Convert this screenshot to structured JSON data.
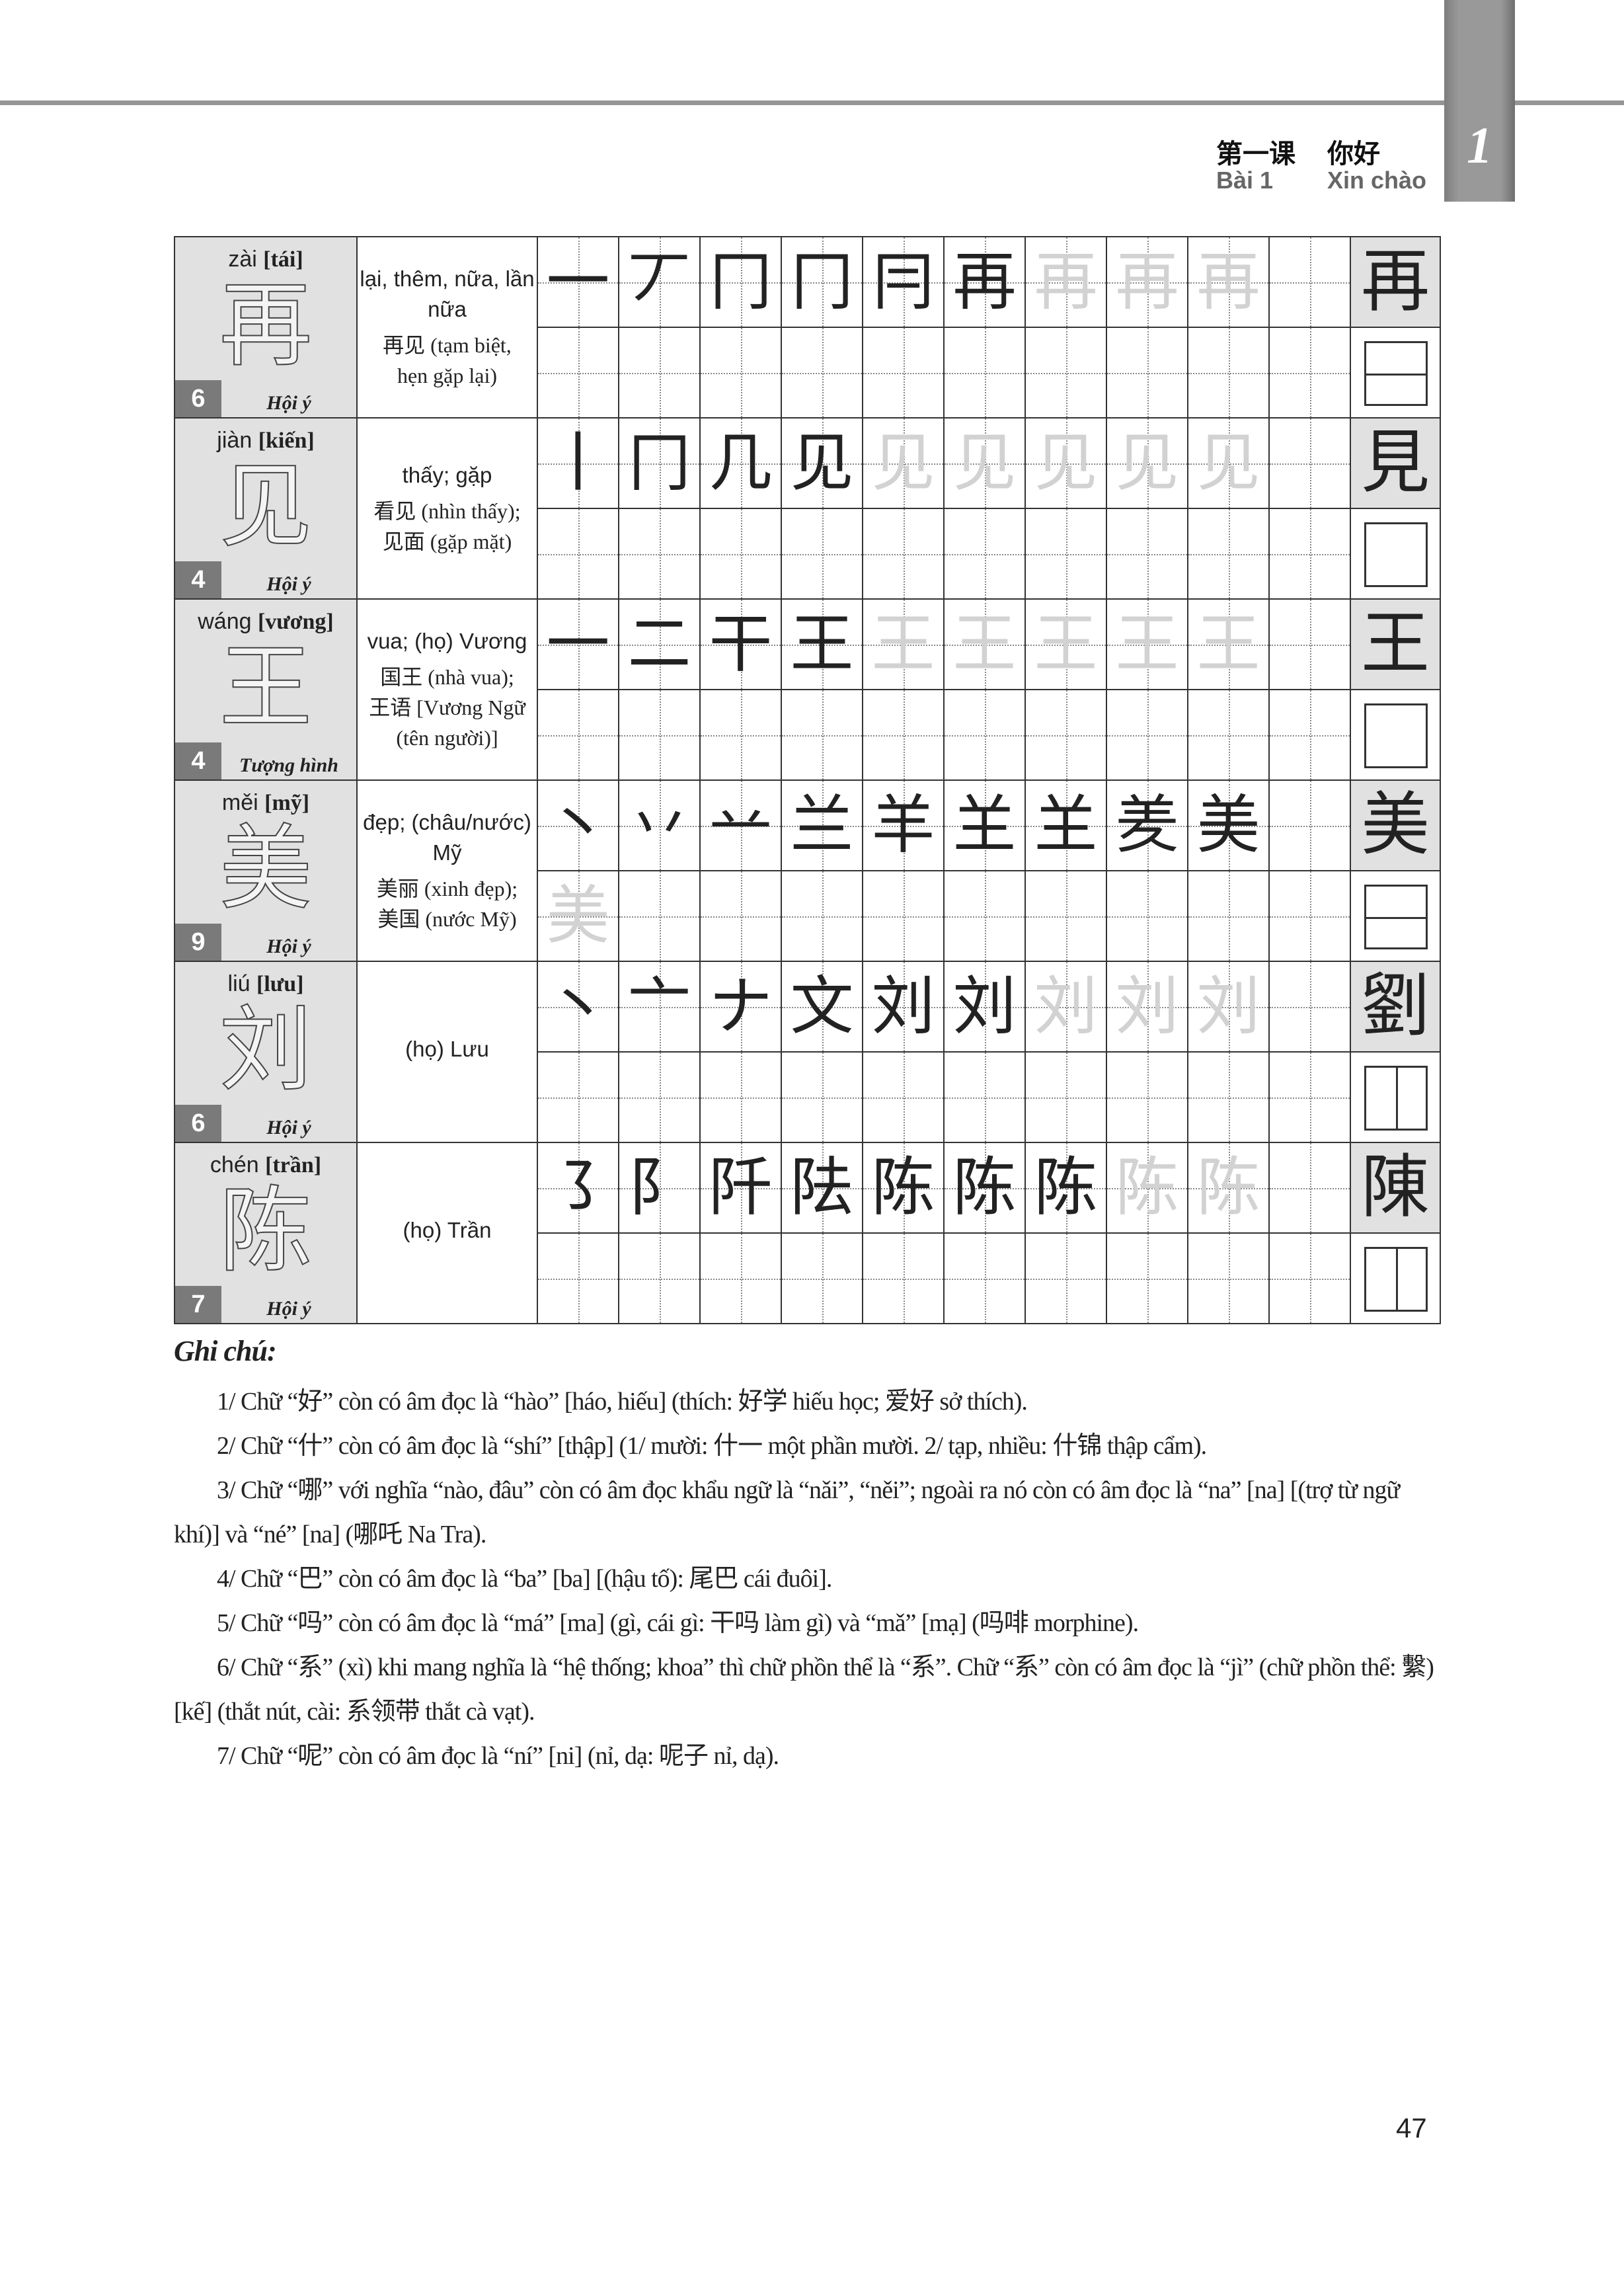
{
  "header": {
    "lesson_zh": "第一课",
    "title_zh": "你好",
    "lesson_vi": "Bài 1",
    "title_vi": "Xin chào",
    "chapter_tab": "1"
  },
  "rows": [
    {
      "pinyin": "zài",
      "hanviet": "[tái]",
      "char": "再",
      "strokes": "6",
      "category": "Hội ý",
      "meaning": "lại, thêm, nữa, lần nữa",
      "examples": [
        "再见 (tạm biệt,",
        "hẹn gặp lại)"
      ],
      "stages": [
        "一",
        "丆",
        "冂",
        "冂",
        "冃",
        "再"
      ],
      "trace": "再",
      "trace_count": 3,
      "bottom_trace": 0,
      "traditional": "再",
      "structure": "top-bottom"
    },
    {
      "pinyin": "jiàn",
      "hanviet": "[kiến]",
      "char": "见",
      "strokes": "4",
      "category": "Hội ý",
      "meaning": "thấy; gặp",
      "examples": [
        "看见 (nhìn thấy);",
        "见面 (gặp mặt)"
      ],
      "stages": [
        "丨",
        "冂",
        "几",
        "见"
      ],
      "trace": "见",
      "trace_count": 5,
      "bottom_trace": 0,
      "traditional": "見",
      "structure": "single"
    },
    {
      "pinyin": "wáng",
      "hanviet": "[vương]",
      "char": "王",
      "strokes": "4",
      "category": "Tượng hình",
      "meaning": "vua; (họ) Vương",
      "examples": [
        "国王 (nhà vua);",
        "王语 [Vương Ngữ",
        "(tên người)]"
      ],
      "stages": [
        "一",
        "二",
        "干",
        "王"
      ],
      "trace": "王",
      "trace_count": 5,
      "bottom_trace": 0,
      "traditional": "王",
      "structure": "single"
    },
    {
      "pinyin": "měi",
      "hanviet": "[mỹ]",
      "char": "美",
      "strokes": "9",
      "category": "Hội ý",
      "meaning": "đẹp; (châu/nước) Mỹ",
      "examples": [
        "美丽 (xinh đẹp);",
        "美国 (nước Mỹ)"
      ],
      "stages": [
        "丶",
        "丷",
        "䒑",
        "兰",
        "羊",
        "𦍌",
        "𦍌",
        "羑",
        "美"
      ],
      "trace": "美",
      "trace_count": 0,
      "bottom_trace": 1,
      "traditional": "美",
      "structure": "top-bottom"
    },
    {
      "pinyin": "liú",
      "hanviet": "[lưu]",
      "char": "刘",
      "strokes": "6",
      "category": "Hội ý",
      "meaning": "(họ) Lưu",
      "examples": [],
      "stages": [
        "丶",
        "亠",
        "ナ",
        "文",
        "刘",
        "刘"
      ],
      "trace": "刘",
      "trace_count": 3,
      "bottom_trace": 0,
      "traditional": "劉",
      "structure": "left-right"
    },
    {
      "pinyin": "chén",
      "hanviet": "[trần]",
      "char": "陈",
      "strokes": "7",
      "category": "Hội ý",
      "meaning": "(họ) Trần",
      "examples": [],
      "stages": [
        "㇌",
        "阝",
        "阡",
        "阹",
        "陈",
        "陈",
        "陈"
      ],
      "trace": "陈",
      "trace_count": 2,
      "bottom_trace": 0,
      "traditional": "陳",
      "structure": "left-right"
    }
  ],
  "notes": {
    "title": "Ghi chú:",
    "lines": [
      "1/ Chữ “好” còn có âm đọc là “hào” [háo, hiếu] (thích: 好学 hiếu học; 爱好 sở thích).",
      "2/ Chữ “什” còn có âm đọc là “shí” [thập] (1/ mười: 什一 một phần mười. 2/ tạp, nhiều: 什锦 thập cẩm).",
      "3/ Chữ “哪” với nghĩa “nào, đâu” còn có âm đọc khẩu ngữ là “nǎi”, “něi”; ngoài ra nó còn có âm đọc là “na” [na] [(trợ từ ngữ khí)] và “né” [na] (哪吒 Na Tra).",
      "4/ Chữ “巴” còn có âm đọc là “ba” [ba] [(hậu tố): 尾巴 cái đuôi].",
      "5/ Chữ “吗” còn có âm đọc là “má” [ma] (gì, cái gì: 干吗 làm gì) và “mǎ” [mạ] (吗啡 morphine).",
      "6/ Chữ “系” (xì) khi mang nghĩa là “hệ thống; khoa” thì chữ phồn thể là “系”. Chữ “系” còn có âm đọc là “jì” (chữ phồn thể: 繫) [kế] (thắt nút, cài: 系领带 thắt cà vạt).",
      "7/ Chữ “呢” còn có âm đọc là “ní” [ni] (nỉ, dạ: 呢子 nỉ, dạ)."
    ]
  },
  "page_number": "47"
}
